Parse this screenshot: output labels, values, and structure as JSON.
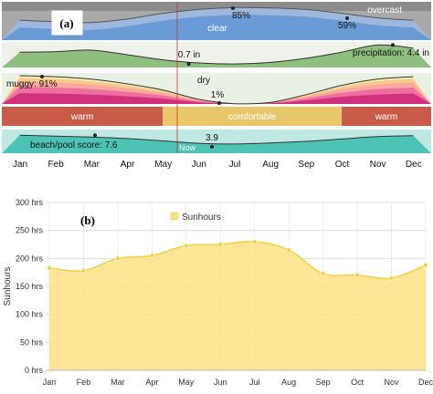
{
  "chart_data": [
    {
      "panel_label": "(a)",
      "type": "area",
      "x_categories": [
        "Jan",
        "Feb",
        "Mar",
        "Apr",
        "May",
        "Jun",
        "Jul",
        "Aug",
        "Sep",
        "Oct",
        "Nov",
        "Dec"
      ],
      "marker": "Now",
      "bands": [
        {
          "type": "area",
          "labels": [
            "clear",
            "overcast"
          ],
          "annotations": [
            "85%",
            "59%"
          ],
          "series": [
            {
              "name": "clear",
              "values": [
                52,
                48,
                46,
                55,
                70,
                80,
                85,
                84,
                80,
                70,
                58,
                52
              ]
            }
          ]
        },
        {
          "type": "area",
          "annotations": [
            "0.7 in",
            "precipitation: 4.4 in"
          ],
          "series": [
            {
              "values": [
                3.0,
                3.1,
                3.4,
                2.5,
                1.5,
                0.9,
                0.7,
                1.0,
                1.8,
                3.0,
                4.4,
                3.8
              ]
            }
          ]
        },
        {
          "type": "area",
          "labels": [
            "dry"
          ],
          "annotations": [
            "muggy: 91%",
            "1%"
          ],
          "series": [
            {
              "values": [
                91,
                88,
                80,
                65,
                45,
                15,
                1,
                5,
                30,
                60,
                80,
                88
              ]
            }
          ]
        },
        {
          "type": "bar",
          "segments": [
            {
              "label": "warm",
              "from": "Jan",
              "to": "May"
            },
            {
              "label": "comfortable",
              "from": "May",
              "to": "Oct"
            },
            {
              "label": "warm",
              "from": "Oct",
              "to": "Dec"
            }
          ]
        },
        {
          "type": "area",
          "annotations": [
            "beach/pool score: 7.6",
            "3.9"
          ],
          "series": [
            {
              "values": [
                7.6,
                7.2,
                6.8,
                6.2,
                5.2,
                4.2,
                3.9,
                4.3,
                5.0,
                6.0,
                7.0,
                7.4
              ]
            }
          ]
        }
      ]
    },
    {
      "panel_label": "(b)",
      "type": "area",
      "categories": [
        "Jan",
        "Feb",
        "Mar",
        "Apr",
        "May",
        "Jun",
        "Jul",
        "Aug",
        "Sep",
        "Oct",
        "Nov",
        "Dec"
      ],
      "series": [
        {
          "name": "Sunhours",
          "values": [
            183,
            178,
            200,
            205,
            223,
            225,
            230,
            215,
            173,
            170,
            165,
            188
          ]
        }
      ],
      "ylabel": "Sunhours",
      "ylim": [
        0,
        300
      ],
      "yticks": [
        0,
        50,
        100,
        150,
        200,
        250,
        300
      ],
      "ytick_labels": [
        "0 hrs",
        "50 hrs",
        "100 hrs",
        "150 hrs",
        "200 hrs",
        "250 hrs",
        "300 hrs"
      ],
      "legend_position": "top-center",
      "grid": true,
      "colors": {
        "fill": "#FFE082",
        "line": "#F2D04B",
        "marker": "#F2D04B"
      }
    }
  ]
}
